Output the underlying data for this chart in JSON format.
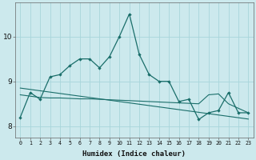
{
  "xlabel": "Humidex (Indice chaleur)",
  "bg_color": "#cce9ed",
  "grid_color": "#a8d5da",
  "line_color": "#1a6e6a",
  "x_data": [
    0,
    1,
    2,
    3,
    4,
    5,
    6,
    7,
    8,
    9,
    10,
    11,
    12,
    13,
    14,
    15,
    16,
    17,
    18,
    19,
    20,
    21,
    22,
    23
  ],
  "series1": [
    8.2,
    8.75,
    8.6,
    9.1,
    9.15,
    9.35,
    9.5,
    9.5,
    9.3,
    9.55,
    10.0,
    10.5,
    9.6,
    9.15,
    9.0,
    9.0,
    8.55,
    8.6,
    8.15,
    8.3,
    8.35,
    8.75,
    8.3,
    8.3
  ],
  "series2": [
    8.85,
    8.82,
    8.79,
    8.76,
    8.73,
    8.7,
    8.67,
    8.64,
    8.61,
    8.58,
    8.55,
    8.52,
    8.49,
    8.46,
    8.43,
    8.4,
    8.37,
    8.34,
    8.31,
    8.28,
    8.25,
    8.22,
    8.19,
    8.16
  ],
  "series3": [
    8.7,
    8.67,
    8.64,
    8.63,
    8.63,
    8.62,
    8.61,
    8.61,
    8.6,
    8.59,
    8.58,
    8.57,
    8.56,
    8.55,
    8.54,
    8.53,
    8.52,
    8.51,
    8.5,
    8.7,
    8.72,
    8.5,
    8.4,
    8.3
  ],
  "ylim": [
    7.75,
    10.75
  ],
  "xlim": [
    -0.5,
    23.5
  ],
  "yticks": [
    8,
    9,
    10
  ],
  "xticks": [
    0,
    1,
    2,
    3,
    4,
    5,
    6,
    7,
    8,
    9,
    10,
    11,
    12,
    13,
    14,
    15,
    16,
    17,
    18,
    19,
    20,
    21,
    22,
    23
  ]
}
